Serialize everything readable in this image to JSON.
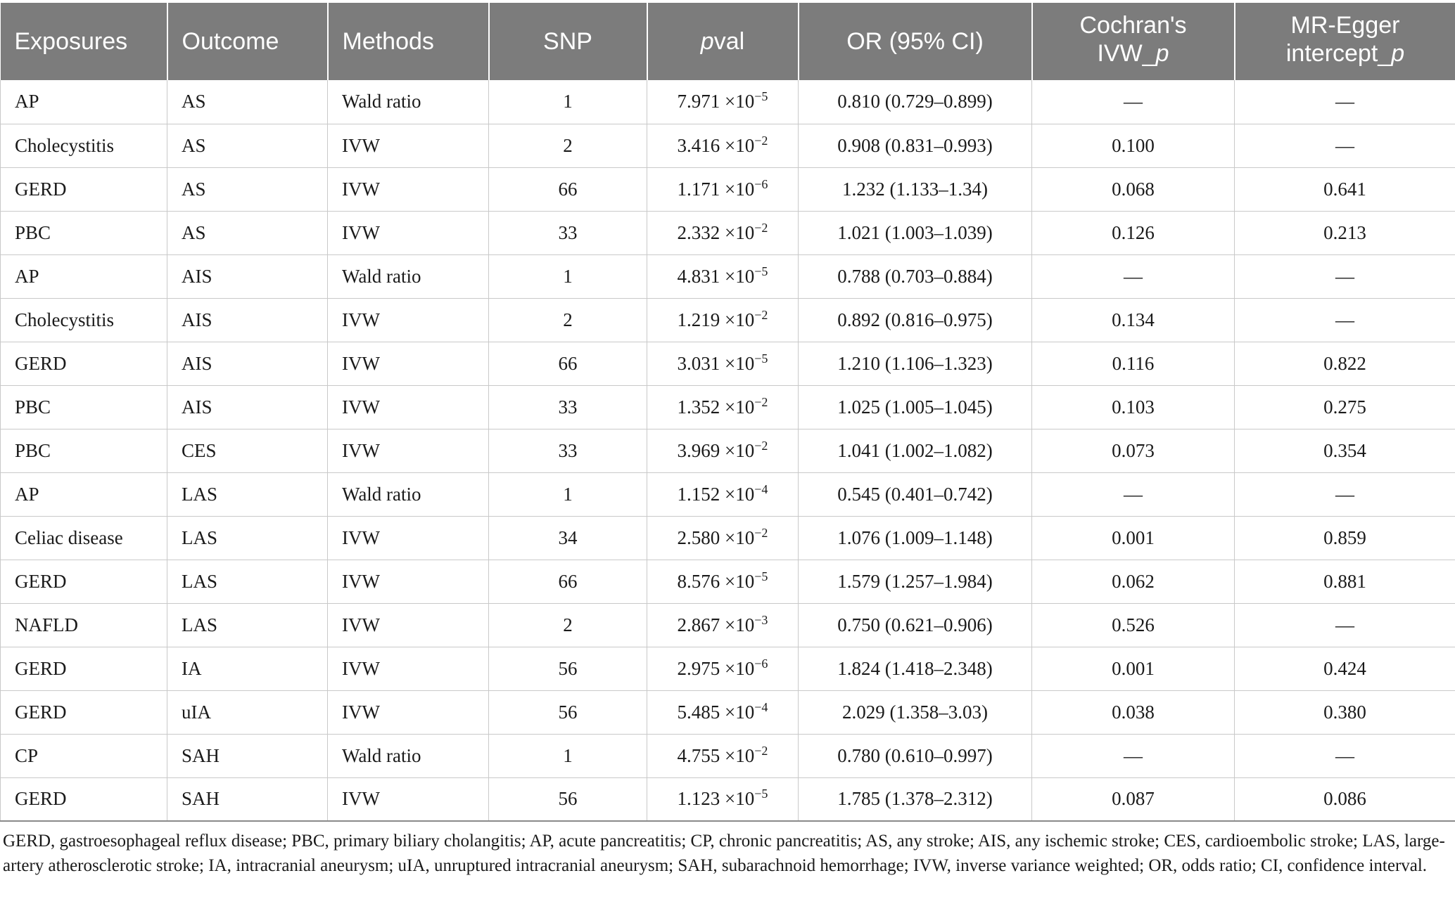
{
  "table": {
    "headers": [
      {
        "text": "Exposures",
        "italic_suffix": ""
      },
      {
        "text": "Outcome",
        "italic_suffix": ""
      },
      {
        "text": "Methods",
        "italic_suffix": ""
      },
      {
        "text": "SNP",
        "italic_suffix": ""
      },
      {
        "text": "",
        "italic_suffix": "p",
        "rest": "val"
      },
      {
        "text": "OR (95% CI)",
        "italic_suffix": ""
      },
      {
        "line1": "Cochran's",
        "line2": "IVW_",
        "line2_italic": "p"
      },
      {
        "line1": "MR-Egger",
        "line2": "intercept_",
        "line2_italic": "p"
      }
    ],
    "rows": [
      {
        "exposure": "AP",
        "outcome": "AS",
        "method": "Wald ratio",
        "snp": "1",
        "pval_base": "7.971 ×10",
        "pval_exp": "−5",
        "or_ci": "0.810 (0.729–0.899)",
        "cochran": "—",
        "egger": "—"
      },
      {
        "exposure": "Cholecystitis",
        "outcome": "AS",
        "method": "IVW",
        "snp": "2",
        "pval_base": "3.416 ×10",
        "pval_exp": "−2",
        "or_ci": "0.908 (0.831–0.993)",
        "cochran": "0.100",
        "egger": "—"
      },
      {
        "exposure": "GERD",
        "outcome": "AS",
        "method": "IVW",
        "snp": "66",
        "pval_base": "1.171 ×10",
        "pval_exp": "−6",
        "or_ci": "1.232 (1.133–1.34)",
        "cochran": "0.068",
        "egger": "0.641"
      },
      {
        "exposure": "PBC",
        "outcome": "AS",
        "method": "IVW",
        "snp": "33",
        "pval_base": "2.332 ×10",
        "pval_exp": "−2",
        "or_ci": "1.021 (1.003–1.039)",
        "cochran": "0.126",
        "egger": "0.213"
      },
      {
        "exposure": "AP",
        "outcome": "AIS",
        "method": "Wald ratio",
        "snp": "1",
        "pval_base": "4.831 ×10",
        "pval_exp": "−5",
        "or_ci": "0.788 (0.703–0.884)",
        "cochran": "—",
        "egger": "—"
      },
      {
        "exposure": "Cholecystitis",
        "outcome": "AIS",
        "method": "IVW",
        "snp": "2",
        "pval_base": "1.219 ×10",
        "pval_exp": "−2",
        "or_ci": "0.892 (0.816–0.975)",
        "cochran": "0.134",
        "egger": "—"
      },
      {
        "exposure": "GERD",
        "outcome": "AIS",
        "method": "IVW",
        "snp": "66",
        "pval_base": "3.031 ×10",
        "pval_exp": "−5",
        "or_ci": "1.210 (1.106–1.323)",
        "cochran": "0.116",
        "egger": "0.822"
      },
      {
        "exposure": "PBC",
        "outcome": "AIS",
        "method": "IVW",
        "snp": "33",
        "pval_base": "1.352 ×10",
        "pval_exp": "−2",
        "or_ci": "1.025 (1.005–1.045)",
        "cochran": "0.103",
        "egger": "0.275"
      },
      {
        "exposure": "PBC",
        "outcome": "CES",
        "method": "IVW",
        "snp": "33",
        "pval_base": "3.969 ×10",
        "pval_exp": "−2",
        "or_ci": "1.041 (1.002–1.082)",
        "cochran": "0.073",
        "egger": "0.354"
      },
      {
        "exposure": "AP",
        "outcome": "LAS",
        "method": "Wald ratio",
        "snp": "1",
        "pval_base": "1.152 ×10",
        "pval_exp": "−4",
        "or_ci": "0.545 (0.401–0.742)",
        "cochran": "—",
        "egger": "—"
      },
      {
        "exposure": "Celiac disease",
        "outcome": "LAS",
        "method": "IVW",
        "snp": "34",
        "pval_base": "2.580 ×10",
        "pval_exp": "−2",
        "or_ci": "1.076 (1.009–1.148)",
        "cochran": "0.001",
        "egger": "0.859"
      },
      {
        "exposure": "GERD",
        "outcome": "LAS",
        "method": "IVW",
        "snp": "66",
        "pval_base": "8.576 ×10",
        "pval_exp": "−5",
        "or_ci": "1.579 (1.257–1.984)",
        "cochran": "0.062",
        "egger": "0.881"
      },
      {
        "exposure": "NAFLD",
        "outcome": "LAS",
        "method": "IVW",
        "snp": "2",
        "pval_base": "2.867 ×10",
        "pval_exp": "−3",
        "or_ci": "0.750 (0.621–0.906)",
        "cochran": "0.526",
        "egger": "—"
      },
      {
        "exposure": "GERD",
        "outcome": "IA",
        "method": "IVW",
        "snp": "56",
        "pval_base": "2.975 ×10",
        "pval_exp": "−6",
        "or_ci": "1.824 (1.418–2.348)",
        "cochran": "0.001",
        "egger": "0.424"
      },
      {
        "exposure": "GERD",
        "outcome": "uIA",
        "method": "IVW",
        "snp": "56",
        "pval_base": "5.485 ×10",
        "pval_exp": "−4",
        "or_ci": "2.029 (1.358–3.03)",
        "cochran": "0.038",
        "egger": "0.380"
      },
      {
        "exposure": "CP",
        "outcome": "SAH",
        "method": "Wald ratio",
        "snp": "1",
        "pval_base": "4.755 ×10",
        "pval_exp": "−2",
        "or_ci": "0.780 (0.610–0.997)",
        "cochran": "—",
        "egger": "—"
      },
      {
        "exposure": "GERD",
        "outcome": "SAH",
        "method": "IVW",
        "snp": "56",
        "pval_base": "1.123 ×10",
        "pval_exp": "−5",
        "or_ci": "1.785 (1.378–2.312)",
        "cochran": "0.087",
        "egger": "0.086"
      }
    ]
  },
  "footnote": "GERD, gastroesophageal reflux disease; PBC, primary biliary cholangitis; AP, acute pancreatitis; CP, chronic pancreatitis; AS, any stroke; AIS, any ischemic stroke; CES, cardioembolic stroke; LAS, large-artery atherosclerotic stroke; IA, intracranial aneurysm; uIA, unruptured intracranial aneurysm; SAH, subarachnoid hemorrhage; IVW, inverse variance weighted; OR, odds ratio; CI, confidence interval.",
  "colors": {
    "header_bg": "#7c7c7c",
    "header_text": "#ffffff",
    "grid": "#c9c9c9"
  }
}
